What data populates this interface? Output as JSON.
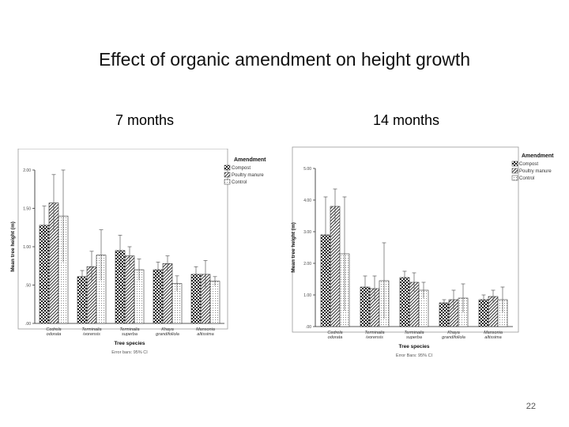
{
  "slide": {
    "title": "Effect of organic amendment on height growth",
    "subtitle_left": "7 months",
    "subtitle_right": "14 months",
    "page_number": "22"
  },
  "chart_data": [
    {
      "type": "bar",
      "title": "",
      "xlabel": "Tree species",
      "ylabel": "Mean tree height (m)",
      "footnote": "Error bars: 95% CI",
      "legend_title": "Amendment",
      "legend_position": "top-right",
      "ylim": [
        0,
        2.0
      ],
      "yticks": [
        ".00",
        ".50",
        "1.00",
        "1.50",
        "2.00"
      ],
      "categories": [
        "Cedrela odorata",
        "Terminalia ivorensis",
        "Terminalia superba",
        "Khaya grandifoliola",
        "Mansonia altissima"
      ],
      "series": [
        {
          "name": "Compost",
          "values": [
            1.28,
            0.61,
            0.95,
            0.7,
            0.64
          ],
          "err": [
            0.25,
            0.08,
            0.2,
            0.1,
            0.1
          ]
        },
        {
          "name": "Poultry manure",
          "values": [
            1.57,
            0.74,
            0.88,
            0.78,
            0.64
          ],
          "err": [
            0.37,
            0.2,
            0.12,
            0.1,
            0.18
          ]
        },
        {
          "name": "Control",
          "values": [
            1.4,
            0.89,
            0.7,
            0.52,
            0.55
          ],
          "err": [
            0.6,
            0.33,
            0.14,
            0.1,
            0.06
          ]
        }
      ],
      "colors": [
        "#333333",
        "#777777",
        "#bbbbbb"
      ]
    },
    {
      "type": "bar",
      "title": "",
      "xlabel": "Tree species",
      "ylabel": "Mean tree height (m)",
      "footnote": "Error Bars: 95% CI",
      "legend_title": "Amendment",
      "legend_position": "top-right",
      "ylim": [
        0,
        5.0
      ],
      "yticks": [
        ".00",
        "1.00",
        "2.00",
        "3.00",
        "4.00",
        "5.00"
      ],
      "categories": [
        "Cedrela odorata",
        "Terminalia ivorensis",
        "Terminalia superba",
        "Khaya grandifoliola",
        "Mansonia altissima"
      ],
      "series": [
        {
          "name": "Compost",
          "values": [
            2.9,
            1.25,
            1.55,
            0.75,
            0.85
          ],
          "err": [
            1.2,
            0.35,
            0.2,
            0.1,
            0.15
          ]
        },
        {
          "name": "Poultry manure",
          "values": [
            3.8,
            1.2,
            1.4,
            0.85,
            0.95
          ],
          "err": [
            0.55,
            0.4,
            0.3,
            0.3,
            0.2
          ]
        },
        {
          "name": "Control",
          "values": [
            2.3,
            1.45,
            1.15,
            0.9,
            0.85
          ],
          "err": [
            1.8,
            1.2,
            0.25,
            0.45,
            0.4
          ]
        }
      ],
      "colors": [
        "#333333",
        "#777777",
        "#bbbbbb"
      ]
    }
  ]
}
